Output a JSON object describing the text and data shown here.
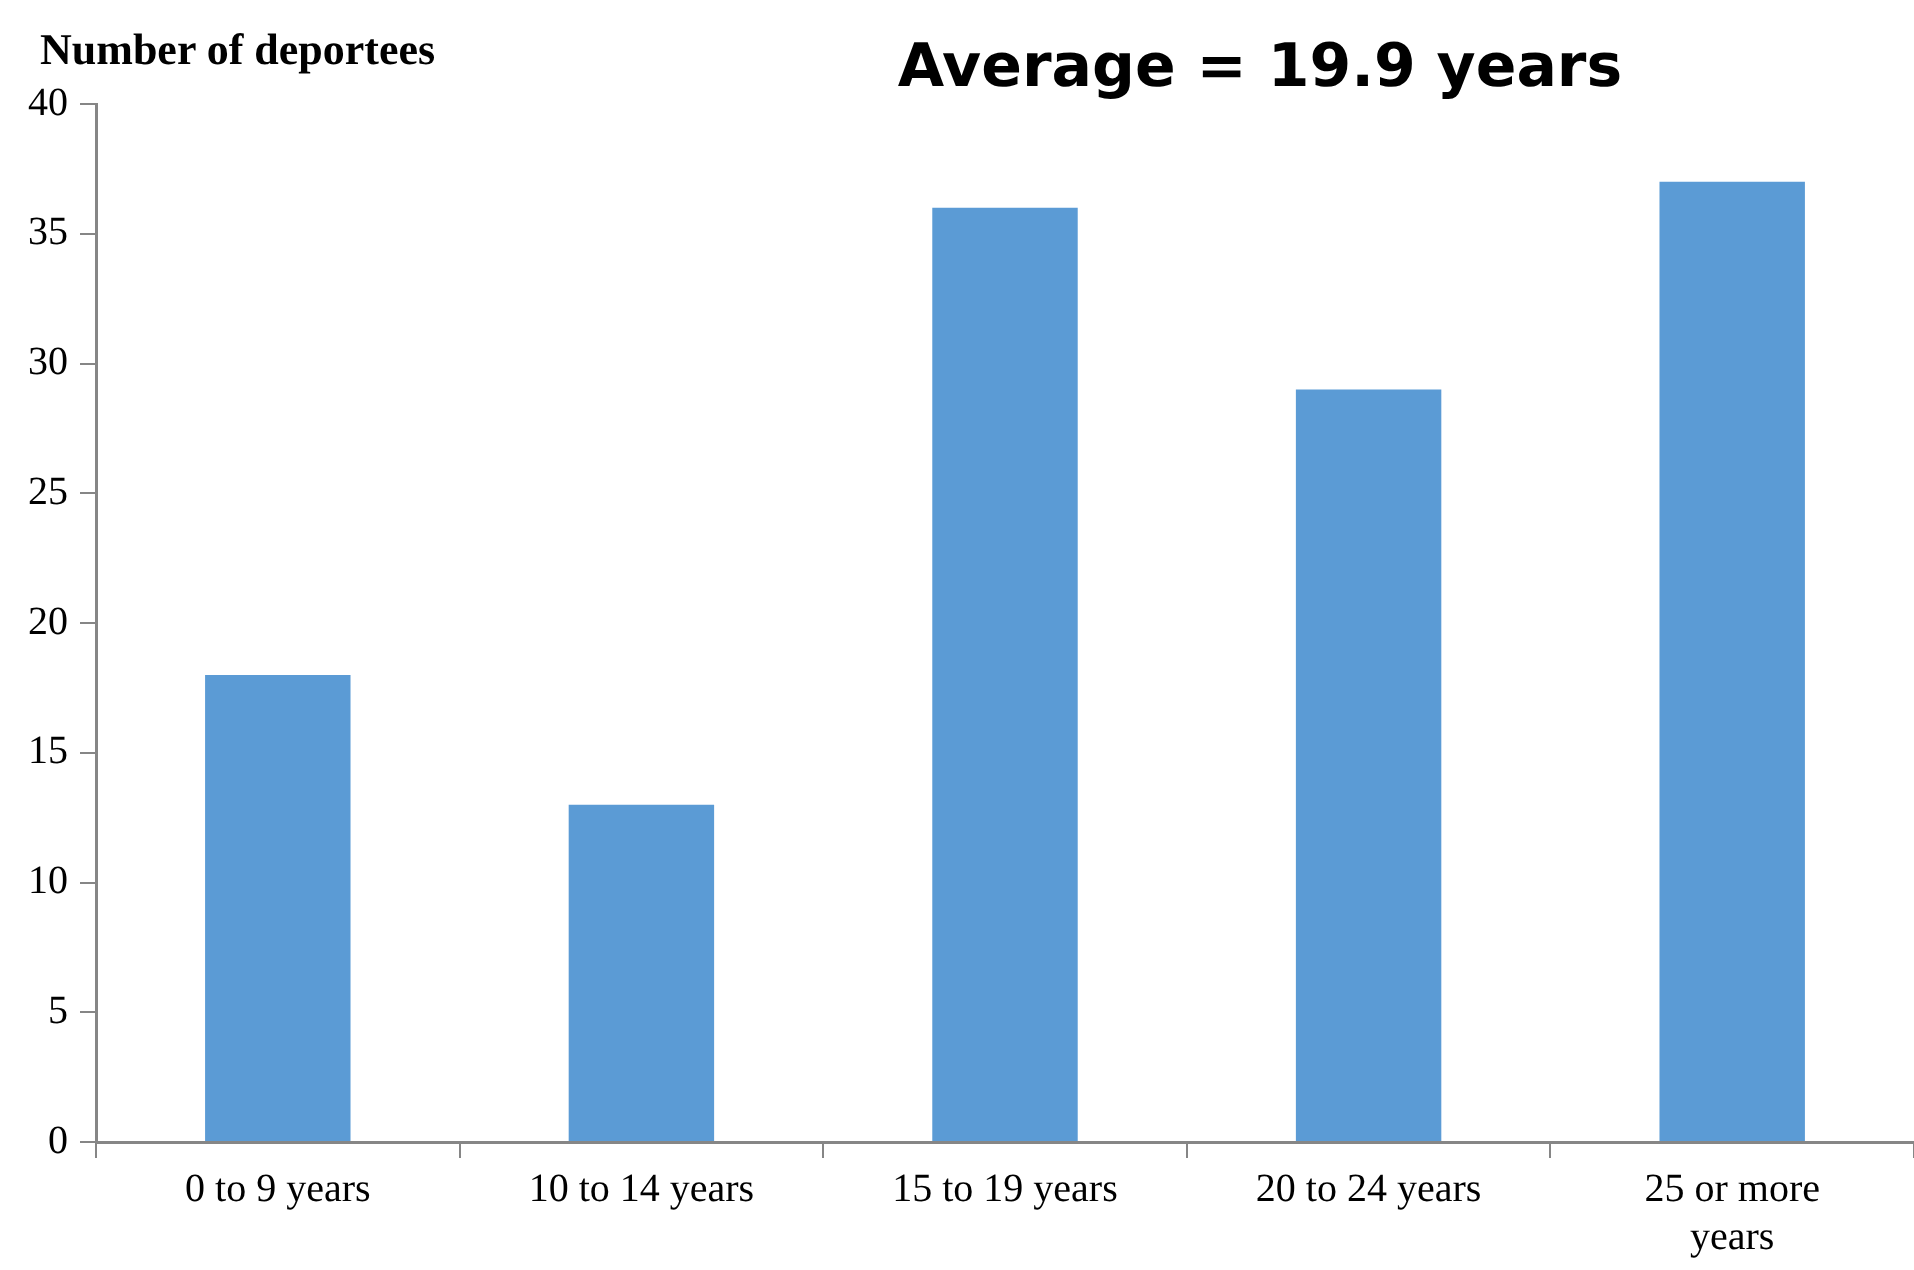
{
  "chart_data": {
    "type": "bar",
    "title": "Average = 19.9 years",
    "ylabel": "Number of deportees",
    "categories": [
      "0 to 9 years",
      "10 to 14 years",
      "15 to 19 years",
      "20 to 24 years",
      "25 or more years"
    ],
    "values": [
      18,
      13,
      36,
      29,
      37
    ],
    "color": "#5b9bd5",
    "ylim": [
      0,
      40
    ],
    "yticks": [
      0,
      5,
      10,
      15,
      20,
      25,
      30,
      35,
      40
    ],
    "grid": false,
    "legend": false
  }
}
